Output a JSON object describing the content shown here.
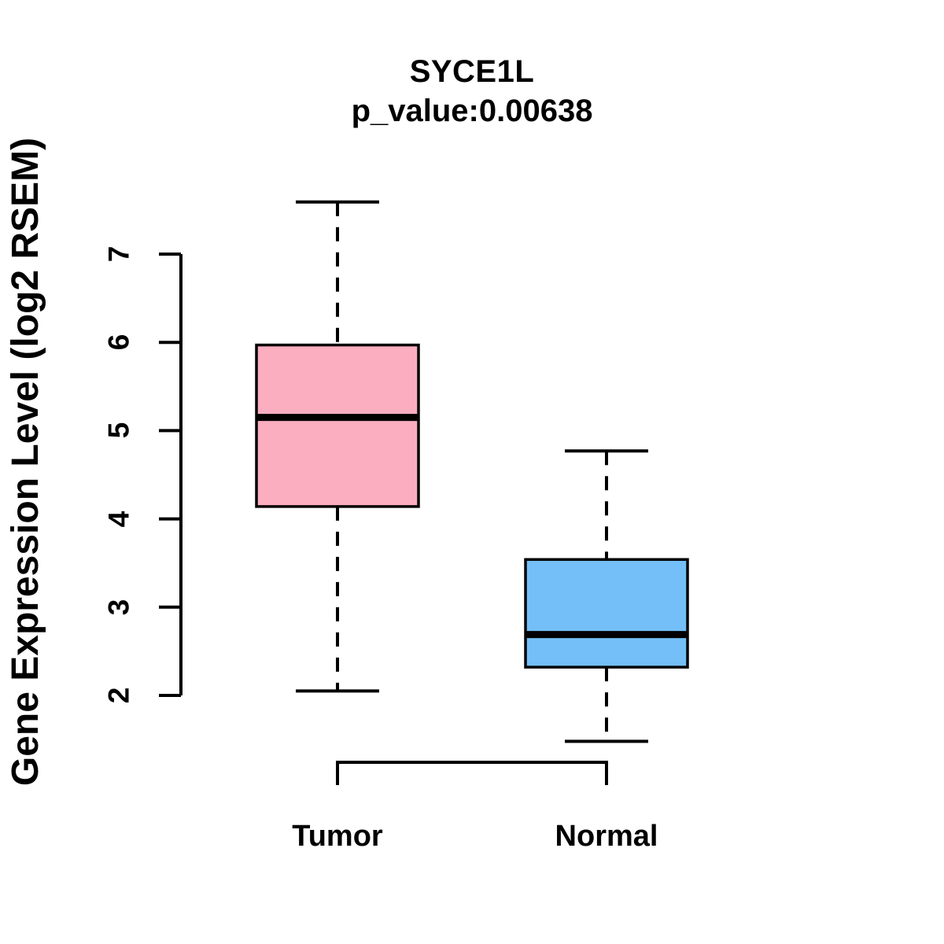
{
  "chart_data": {
    "type": "boxplot",
    "title": "SYCE1L",
    "subtitle": "p_value:0.00638",
    "xlabel": "",
    "ylabel": "Gene Expression Level (log2 RSEM)",
    "yticks": [
      2,
      3,
      4,
      5,
      6,
      7
    ],
    "axis_tick_range": [
      2,
      7
    ],
    "ylim": [
      1.3,
      7.8
    ],
    "grid": false,
    "legend": "none",
    "categories": [
      "Tumor",
      "Normal"
    ],
    "series": [
      {
        "name": "Tumor",
        "fill_color": "#FCAEC1",
        "whisker_low": 2.05,
        "q1": 4.14,
        "median": 5.15,
        "q3": 5.97,
        "whisker_high": 7.59
      },
      {
        "name": "Normal",
        "fill_color": "#74BFF8",
        "whisker_low": 1.48,
        "q1": 2.32,
        "median": 2.69,
        "q3": 3.54,
        "whisker_high": 4.77
      }
    ],
    "line_color": "#000000",
    "whisker_style": "dashed"
  }
}
